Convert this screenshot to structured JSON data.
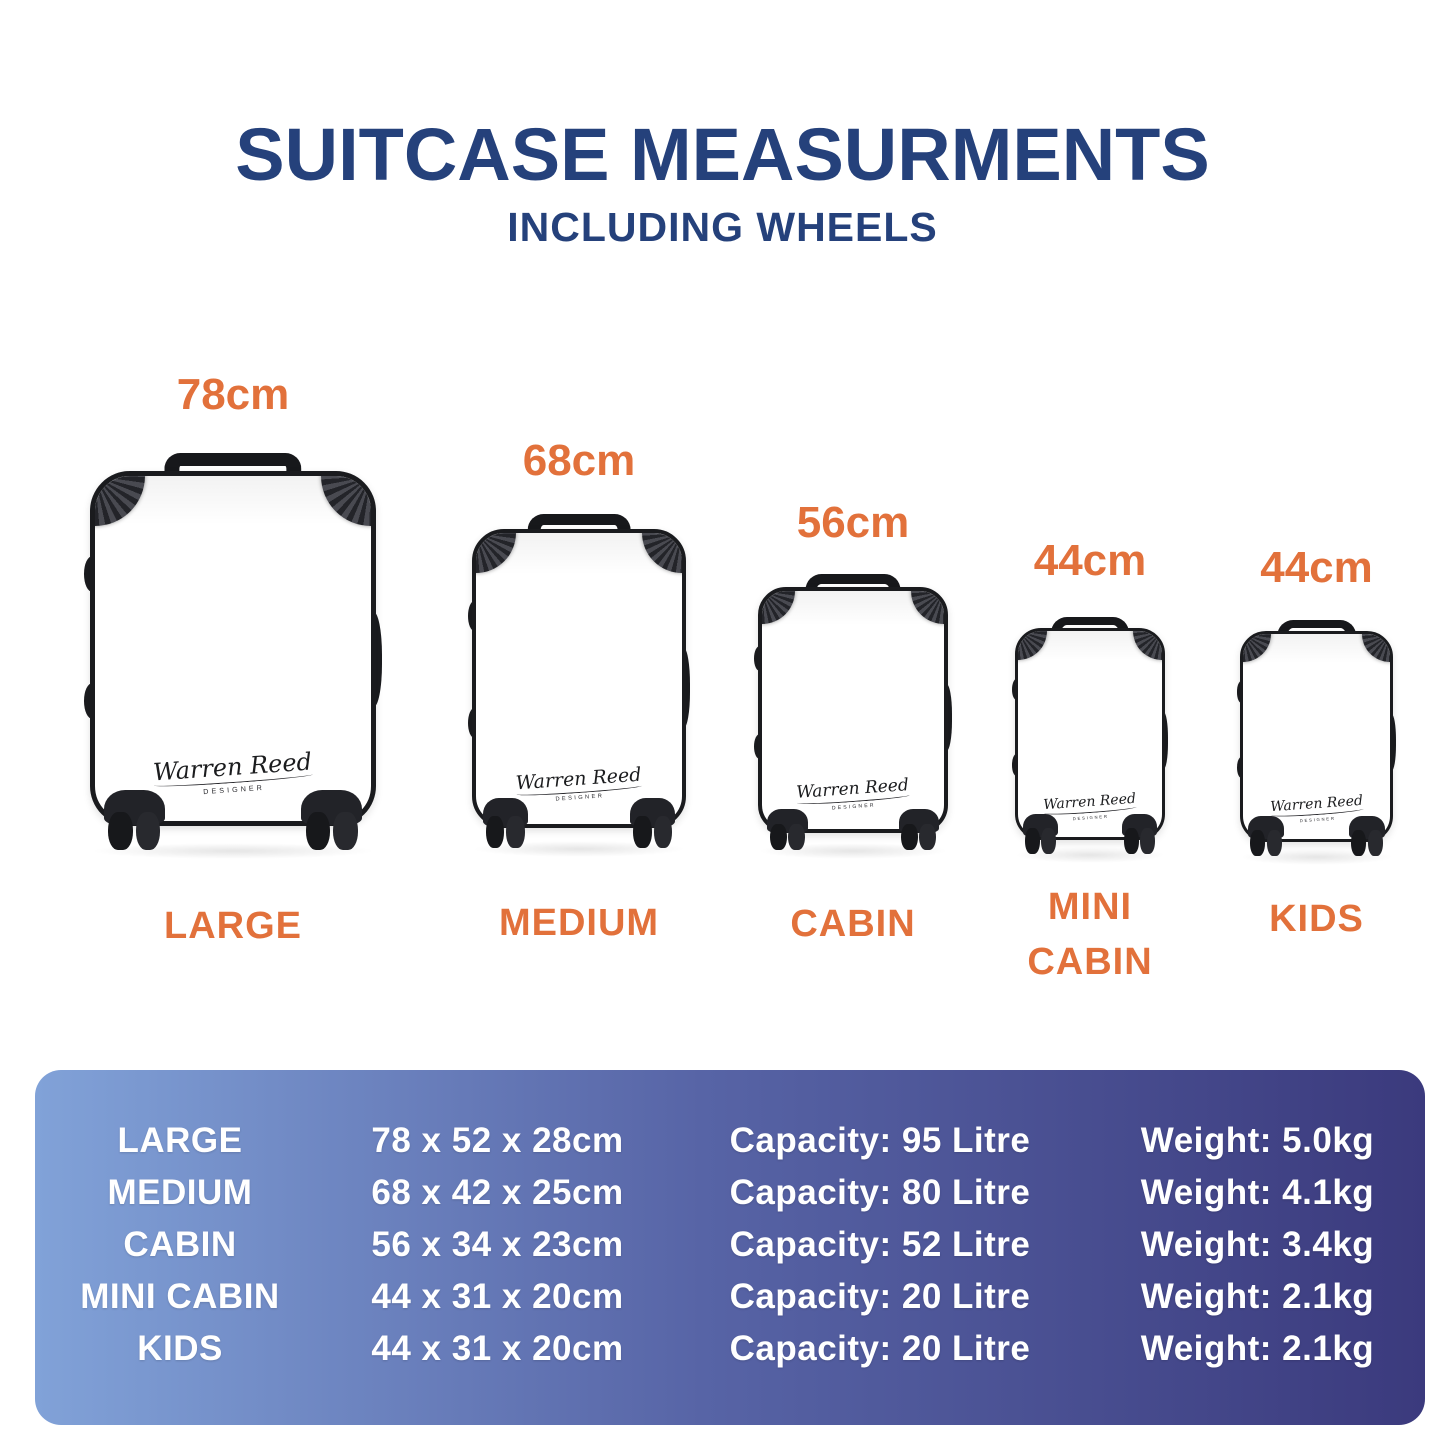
{
  "header": {
    "title": "SUITCASE MEASURMENTS",
    "subtitle": "INCLUDING WHEELS"
  },
  "brand": {
    "signature": "Warren Reed",
    "designer_label": "DESIGNER"
  },
  "colors": {
    "accent_orange": "#E2713B",
    "title_navy": "#25417B",
    "panel_gradient_left": "#81A2D8",
    "panel_gradient_right": "#3B3A7D",
    "panel_text": "#FFFFFF",
    "suitcase_shell": "#FFFFFF",
    "suitcase_trim": "#1A1B1E"
  },
  "suitcases": [
    {
      "name": "LARGE",
      "height_label": "78cm"
    },
    {
      "name": "MEDIUM",
      "height_label": "68cm"
    },
    {
      "name": "CABIN",
      "height_label": "56cm"
    },
    {
      "name": "MINI CABIN",
      "height_label": "44cm"
    },
    {
      "name": "KIDS",
      "height_label": "44cm"
    }
  ],
  "spec_table": {
    "rows": [
      {
        "name": "LARGE",
        "dimensions": "78 x 52 x 28cm",
        "capacity": "Capacity: 95 Litre",
        "weight": "Weight: 5.0kg"
      },
      {
        "name": "MEDIUM",
        "dimensions": "68 x 42 x 25cm",
        "capacity": "Capacity: 80 Litre",
        "weight": "Weight: 4.1kg"
      },
      {
        "name": "CABIN",
        "dimensions": "56 x 34 x 23cm",
        "capacity": "Capacity: 52 Litre",
        "weight": "Weight: 3.4kg"
      },
      {
        "name": "MINI CABIN",
        "dimensions": "44 x 31 x 20cm",
        "capacity": "Capacity: 20 Litre",
        "weight": "Weight: 2.1kg"
      },
      {
        "name": "KIDS",
        "dimensions": "44 x 31 x 20cm",
        "capacity": "Capacity: 20 Litre",
        "weight": "Weight: 2.1kg"
      }
    ]
  }
}
